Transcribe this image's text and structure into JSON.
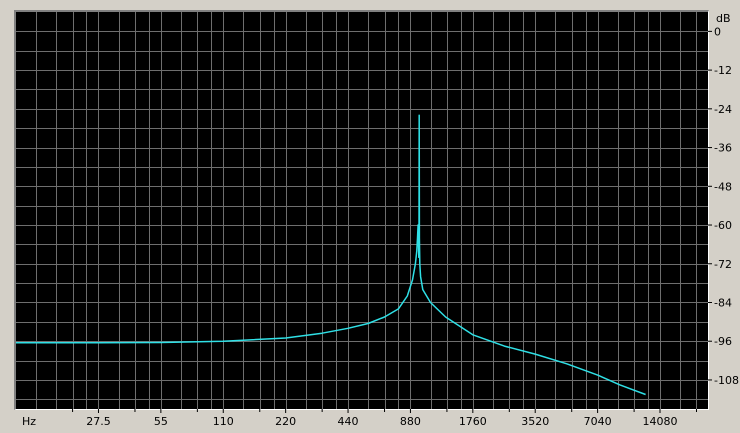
{
  "chart_data": {
    "type": "line",
    "x_unit": "Hz",
    "y_unit": "dB",
    "x_scale": "log",
    "x_ticks": [
      "27.5",
      "55",
      "110",
      "220",
      "440",
      "880",
      "1760",
      "3520",
      "7040",
      "14080"
    ],
    "y_ticks": [
      "0",
      "-12",
      "-24",
      "-36",
      "-48",
      "-60",
      "-72",
      "-84",
      "-96",
      "-108"
    ],
    "xlim": [
      11,
      24000
    ],
    "ylim": [
      -117,
      6
    ],
    "grid": true,
    "background_color": "#000000",
    "grid_color": "#6e6e6e",
    "series": [
      {
        "color": "#2fe0e6",
        "points": [
          [
            11,
            -96.5
          ],
          [
            27.5,
            -96.5
          ],
          [
            55,
            -96.4
          ],
          [
            110,
            -96
          ],
          [
            220,
            -95
          ],
          [
            330,
            -93.5
          ],
          [
            440,
            -92
          ],
          [
            550,
            -90.5
          ],
          [
            660,
            -88.5
          ],
          [
            770,
            -86
          ],
          [
            850,
            -82
          ],
          [
            900,
            -77
          ],
          [
            930,
            -72
          ],
          [
            945,
            -68
          ],
          [
            952,
            -64
          ],
          [
            958,
            -60
          ],
          [
            962,
            -65
          ],
          [
            966,
            -70
          ],
          [
            968,
            -64
          ],
          [
            970,
            -26
          ],
          [
            972,
            -64
          ],
          [
            976,
            -72
          ],
          [
            985,
            -76
          ],
          [
            1010,
            -80
          ],
          [
            1100,
            -84
          ],
          [
            1300,
            -88.5
          ],
          [
            1760,
            -94
          ],
          [
            2500,
            -97.5
          ],
          [
            3520,
            -100
          ],
          [
            5000,
            -103
          ],
          [
            7040,
            -106.5
          ],
          [
            9000,
            -109.5
          ],
          [
            12000,
            -112.5
          ]
        ]
      }
    ]
  }
}
